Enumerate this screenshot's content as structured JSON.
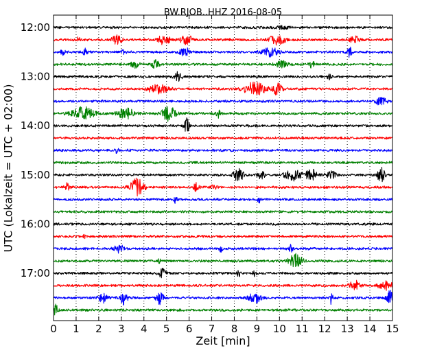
{
  "chart_data": {
    "type": "line",
    "title": "BW.RJOB..HHZ 2016-08-05",
    "xlabel": "Zeit  [min]",
    "ylabel": "UTC (Lokalzeit = UTC + 02:00)",
    "xlim": [
      0,
      15
    ],
    "x_ticks": [
      "0",
      "1",
      "2",
      "3",
      "4",
      "5",
      "6",
      "7",
      "8",
      "9",
      "10",
      "11",
      "12",
      "13",
      "14",
      "15"
    ],
    "y_tick_labels": [
      "12:00",
      "13:00",
      "14:00",
      "15:00",
      "16:00",
      "17:00"
    ],
    "grid": "vertical dotted",
    "trace_colors": [
      "#000000",
      "#ff0000",
      "#0000ff",
      "#008000"
    ],
    "traces": [
      {
        "start": "12:00",
        "color": "#000000",
        "events": [
          [
            10.1,
            0.12,
            0.25
          ]
        ]
      },
      {
        "start": "12:15",
        "color": "#ff0000",
        "events": [
          [
            1.1,
            0.25,
            0.06
          ],
          [
            2.8,
            0.45,
            0.15
          ],
          [
            4.9,
            0.45,
            0.2
          ],
          [
            5.9,
            0.45,
            0.2
          ],
          [
            9.9,
            0.5,
            0.25
          ],
          [
            13.3,
            0.35,
            0.15
          ]
        ]
      },
      {
        "start": "12:30",
        "color": "#0000ff",
        "events": [
          [
            0.4,
            0.35,
            0.06
          ],
          [
            1.4,
            0.35,
            0.06
          ],
          [
            3.1,
            0.35,
            0.06
          ],
          [
            5.8,
            0.45,
            0.15
          ],
          [
            9.6,
            0.45,
            0.25
          ],
          [
            13.1,
            0.45,
            0.1
          ]
        ]
      },
      {
        "start": "12:45",
        "color": "#008000",
        "events": [
          [
            3.6,
            0.4,
            0.12
          ],
          [
            4.5,
            0.4,
            0.12
          ],
          [
            10.1,
            0.35,
            0.18
          ],
          [
            11.4,
            0.35,
            0.12
          ]
        ]
      },
      {
        "start": "13:00",
        "color": "#000000",
        "events": [
          [
            5.5,
            0.45,
            0.12
          ],
          [
            12.2,
            0.3,
            0.06
          ]
        ]
      },
      {
        "start": "13:15",
        "color": "#ff0000",
        "events": [
          [
            4.6,
            0.45,
            0.3
          ],
          [
            8.9,
            0.65,
            0.35
          ],
          [
            9.9,
            0.55,
            0.15
          ]
        ]
      },
      {
        "start": "13:30",
        "color": "#0000ff",
        "events": [
          [
            14.5,
            0.45,
            0.15
          ]
        ]
      },
      {
        "start": "13:45",
        "color": "#008000",
        "events": [
          [
            1.3,
            0.65,
            0.35
          ],
          [
            3.2,
            0.55,
            0.25
          ],
          [
            5.1,
            0.8,
            0.2
          ],
          [
            7.3,
            0.4,
            0.1
          ]
        ]
      },
      {
        "start": "14:00",
        "color": "#000000",
        "events": [
          [
            5.9,
            0.85,
            0.08
          ]
        ]
      },
      {
        "start": "14:15",
        "color": "#ff0000",
        "events": []
      },
      {
        "start": "14:30",
        "color": "#0000ff",
        "events": [
          [
            2.8,
            0.25,
            0.05
          ]
        ]
      },
      {
        "start": "14:45",
        "color": "#008000",
        "events": []
      },
      {
        "start": "15:00",
        "color": "#000000",
        "events": [
          [
            8.2,
            0.75,
            0.15
          ],
          [
            9.2,
            0.45,
            0.1
          ],
          [
            10.6,
            0.55,
            0.25
          ],
          [
            11.4,
            0.7,
            0.15
          ],
          [
            12.3,
            0.4,
            0.15
          ],
          [
            14.5,
            0.7,
            0.12
          ]
        ]
      },
      {
        "start": "15:15",
        "color": "#ff0000",
        "events": [
          [
            0.6,
            0.35,
            0.08
          ],
          [
            3.7,
            0.9,
            0.2
          ],
          [
            6.3,
            0.45,
            0.08
          ],
          [
            7.1,
            0.35,
            0.08
          ]
        ]
      },
      {
        "start": "15:30",
        "color": "#0000ff",
        "events": [
          [
            5.4,
            0.4,
            0.04
          ],
          [
            9.1,
            0.3,
            0.05
          ]
        ]
      },
      {
        "start": "15:45",
        "color": "#008000",
        "events": []
      },
      {
        "start": "16:00",
        "color": "#000000",
        "events": []
      },
      {
        "start": "16:15",
        "color": "#ff0000",
        "events": [
          [
            1.35,
            0.4,
            0.03
          ]
        ]
      },
      {
        "start": "16:30",
        "color": "#0000ff",
        "events": [
          [
            2.9,
            0.4,
            0.15
          ],
          [
            7.4,
            0.3,
            0.05
          ],
          [
            10.5,
            0.35,
            0.06
          ]
        ]
      },
      {
        "start": "16:45",
        "color": "#008000",
        "events": [
          [
            4.7,
            0.3,
            0.05
          ],
          [
            10.7,
            0.7,
            0.2
          ]
        ]
      },
      {
        "start": "17:00",
        "color": "#000000",
        "events": [
          [
            4.8,
            0.55,
            0.12
          ],
          [
            8.2,
            0.35,
            0.05
          ],
          [
            8.9,
            0.35,
            0.05
          ]
        ]
      },
      {
        "start": "17:15",
        "color": "#ff0000",
        "events": [
          [
            13.3,
            0.55,
            0.15
          ],
          [
            14.7,
            0.4,
            0.25
          ]
        ]
      },
      {
        "start": "17:30",
        "color": "#0000ff",
        "events": [
          [
            2.2,
            0.55,
            0.12
          ],
          [
            3.1,
            0.65,
            0.12
          ],
          [
            4.7,
            0.75,
            0.1
          ],
          [
            8.9,
            0.5,
            0.2
          ],
          [
            12.3,
            0.7,
            0.05
          ],
          [
            14.9,
            0.7,
            0.1
          ]
        ]
      },
      {
        "start": "17:45",
        "color": "#008000",
        "events": [
          [
            0.1,
            0.7,
            0.05
          ]
        ]
      }
    ]
  }
}
